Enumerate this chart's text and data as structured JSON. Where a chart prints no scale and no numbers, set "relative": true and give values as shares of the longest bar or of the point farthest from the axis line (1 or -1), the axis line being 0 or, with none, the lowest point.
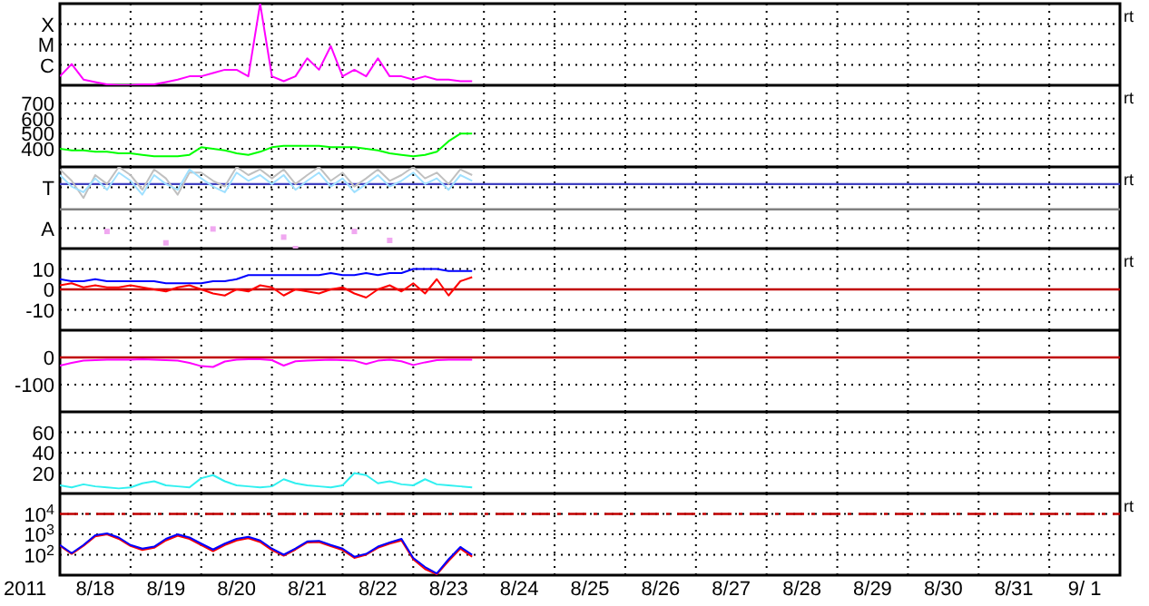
{
  "chart_data": [
    {
      "type": "line",
      "relative": true,
      "grid": true,
      "tick_labels": "y",
      "annotations": [
        "rt",
        "X",
        "M",
        "C"
      ],
      "x": [
        "2011-08-18T00:00",
        "2011-08-18T04:00",
        "2011-08-18T08:00",
        "2011-08-18T12:00",
        "2011-08-18T16:00",
        "2011-08-18T20:00",
        "2011-08-19T00:00",
        "2011-08-19T04:00",
        "2011-08-19T08:00",
        "2011-08-19T12:00",
        "2011-08-19T16:00",
        "2011-08-19T20:00",
        "2011-08-20T00:00",
        "2011-08-20T04:00",
        "2011-08-20T08:00",
        "2011-08-20T12:00",
        "2011-08-20T16:00",
        "2011-08-20T20:00",
        "2011-08-21T00:00",
        "2011-08-21T04:00",
        "2011-08-21T08:00",
        "2011-08-21T12:00",
        "2011-08-21T16:00",
        "2011-08-21T20:00",
        "2011-08-22T00:00",
        "2011-08-22T04:00",
        "2011-08-22T08:00",
        "2011-08-22T12:00",
        "2011-08-22T16:00",
        "2011-08-22T20:00",
        "2011-08-23T00:00",
        "2011-08-23T04:00",
        "2011-08-23T08:00",
        "2011-08-23T12:00",
        "2011-08-23T16:00",
        "2011-08-23T20:00"
      ],
      "xlim": [
        "2011-08-18T00:00",
        "2011-09-02T00:00"
      ],
      "xticks": [
        {
          "value": "2011-08-19T00:00",
          "label": null
        },
        {
          "value": "2011-08-20T00:00",
          "label": null
        },
        {
          "value": "2011-08-21T00:00",
          "label": null
        },
        {
          "value": "2011-08-22T00:00",
          "label": null
        },
        {
          "value": "2011-08-23T00:00",
          "label": null
        },
        {
          "value": "2011-08-24T00:00",
          "label": null
        },
        {
          "value": "2011-08-25T00:00",
          "label": null
        },
        {
          "value": "2011-08-26T00:00",
          "label": null
        },
        {
          "value": "2011-08-27T00:00",
          "label": null
        },
        {
          "value": "2011-08-28T00:00",
          "label": null
        },
        {
          "value": "2011-08-29T00:00",
          "label": null
        },
        {
          "value": "2011-08-30T00:00",
          "label": null
        },
        {
          "value": "2011-08-31T00:00",
          "label": null
        },
        {
          "value": "2011-09-01T00:00",
          "label": null
        }
      ],
      "series": [
        {
          "color": "#ff00ff",
          "values": [
            0.11,
            0.26,
            0.07,
            0.04,
            0.01,
            0,
            0,
            0.01,
            0.01,
            0.04,
            0.07,
            0.11,
            0.11,
            0.15,
            0.19,
            0.19,
            0.11,
            1,
            0.11,
            0.05,
            0.11,
            0.33,
            0.19,
            0.48,
            0.11,
            0.19,
            0.11,
            0.33,
            0.11,
            0.11,
            0.07,
            0.11,
            0.07,
            0.07,
            0.05,
            0.05
          ]
        }
      ]
    },
    {
      "type": "line",
      "grid": true,
      "tick_labels": "y",
      "annotations": [
        "rt"
      ],
      "x": [
        "2011-08-18T00:00",
        "2011-08-18T04:00",
        "2011-08-18T08:00",
        "2011-08-18T12:00",
        "2011-08-18T16:00",
        "2011-08-18T20:00",
        "2011-08-19T00:00",
        "2011-08-19T04:00",
        "2011-08-19T08:00",
        "2011-08-19T12:00",
        "2011-08-19T16:00",
        "2011-08-19T20:00",
        "2011-08-20T00:00",
        "2011-08-20T04:00",
        "2011-08-20T08:00",
        "2011-08-20T12:00",
        "2011-08-20T16:00",
        "2011-08-20T20:00",
        "2011-08-21T00:00",
        "2011-08-21T04:00",
        "2011-08-21T08:00",
        "2011-08-21T12:00",
        "2011-08-21T16:00",
        "2011-08-21T20:00",
        "2011-08-22T00:00",
        "2011-08-22T04:00",
        "2011-08-22T08:00",
        "2011-08-22T12:00",
        "2011-08-22T16:00",
        "2011-08-22T20:00",
        "2011-08-23T00:00",
        "2011-08-23T04:00",
        "2011-08-23T08:00",
        "2011-08-23T12:00",
        "2011-08-23T16:00",
        "2011-08-23T20:00"
      ],
      "xlim": [
        "2011-08-18T00:00",
        "2011-09-02T00:00"
      ],
      "xticks": [
        {
          "value": "2011-08-19T00:00",
          "label": null
        },
        {
          "value": "2011-08-20T00:00",
          "label": null
        },
        {
          "value": "2011-08-21T00:00",
          "label": null
        },
        {
          "value": "2011-08-22T00:00",
          "label": null
        },
        {
          "value": "2011-08-23T00:00",
          "label": null
        },
        {
          "value": "2011-08-24T00:00",
          "label": null
        },
        {
          "value": "2011-08-25T00:00",
          "label": null
        },
        {
          "value": "2011-08-26T00:00",
          "label": null
        },
        {
          "value": "2011-08-27T00:00",
          "label": null
        },
        {
          "value": "2011-08-28T00:00",
          "label": null
        },
        {
          "value": "2011-08-29T00:00",
          "label": null
        },
        {
          "value": "2011-08-30T00:00",
          "label": null
        },
        {
          "value": "2011-08-31T00:00",
          "label": null
        },
        {
          "value": "2011-09-01T00:00",
          "label": null
        }
      ],
      "ylim": [
        280,
        820
      ],
      "yticks": [
        400,
        500,
        600,
        700
      ],
      "series": [
        {
          "color": "#00ff00",
          "values": [
            400,
            390,
            390,
            380,
            380,
            370,
            370,
            360,
            350,
            350,
            350,
            360,
            410,
            400,
            390,
            370,
            360,
            380,
            410,
            420,
            420,
            420,
            420,
            410,
            410,
            410,
            400,
            390,
            370,
            360,
            350,
            360,
            380,
            450,
            500,
            500
          ]
        }
      ]
    },
    {
      "type": "line",
      "relative": true,
      "grid": true,
      "tick_labels": "y",
      "annotations": [
        "rt",
        "T",
        "A"
      ],
      "x": [
        "2011-08-18T00:00",
        "2011-08-18T04:00",
        "2011-08-18T08:00",
        "2011-08-18T12:00",
        "2011-08-18T16:00",
        "2011-08-18T20:00",
        "2011-08-19T00:00",
        "2011-08-19T04:00",
        "2011-08-19T08:00",
        "2011-08-19T12:00",
        "2011-08-19T16:00",
        "2011-08-19T20:00",
        "2011-08-20T00:00",
        "2011-08-20T04:00",
        "2011-08-20T08:00",
        "2011-08-20T12:00",
        "2011-08-20T16:00",
        "2011-08-20T20:00",
        "2011-08-21T00:00",
        "2011-08-21T04:00",
        "2011-08-21T08:00",
        "2011-08-21T12:00",
        "2011-08-21T16:00",
        "2011-08-21T20:00",
        "2011-08-22T00:00",
        "2011-08-22T04:00",
        "2011-08-22T08:00",
        "2011-08-22T12:00",
        "2011-08-22T16:00",
        "2011-08-22T20:00",
        "2011-08-23T00:00",
        "2011-08-23T04:00",
        "2011-08-23T08:00",
        "2011-08-23T12:00",
        "2011-08-23T16:00",
        "2011-08-23T20:00"
      ],
      "xlim": [
        "2011-08-18T00:00",
        "2011-09-02T00:00"
      ],
      "xticks": [
        {
          "value": "2011-08-19T00:00",
          "label": null
        },
        {
          "value": "2011-08-20T00:00",
          "label": null
        },
        {
          "value": "2011-08-21T00:00",
          "label": null
        },
        {
          "value": "2011-08-22T00:00",
          "label": null
        },
        {
          "value": "2011-08-23T00:00",
          "label": null
        },
        {
          "value": "2011-08-24T00:00",
          "label": null
        },
        {
          "value": "2011-08-25T00:00",
          "label": null
        },
        {
          "value": "2011-08-26T00:00",
          "label": null
        },
        {
          "value": "2011-08-27T00:00",
          "label": null
        },
        {
          "value": "2011-08-28T00:00",
          "label": null
        },
        {
          "value": "2011-08-29T00:00",
          "label": null
        },
        {
          "value": "2011-08-30T00:00",
          "label": null
        },
        {
          "value": "2011-08-31T00:00",
          "label": null
        },
        {
          "value": "2011-09-01T00:00",
          "label": null
        }
      ],
      "ref_lines": [
        {
          "axis": "y",
          "value": 0.79,
          "color": "#4040c0"
        },
        {
          "axis": "y",
          "value": 0.48,
          "color": "#808080"
        }
      ],
      "series": [
        {
          "color": "#c0c0c0",
          "values": [
            0.97,
            0.83,
            0.62,
            0.9,
            0.79,
            1,
            0.9,
            0.72,
            0.97,
            0.86,
            0.66,
            0.93,
            0.93,
            0.83,
            0.76,
            1,
            0.9,
            0.97,
            0.86,
            0.97,
            0.79,
            0.9,
            1,
            0.83,
            0.93,
            0.76,
            0.86,
            0.97,
            0.83,
            0.9,
            1,
            0.86,
            0.93,
            0.79,
            0.97,
            0.9
          ]
        },
        {
          "color": "#a0e0ff",
          "values": [
            0.9,
            0.76,
            0.69,
            0.86,
            0.72,
            0.93,
            0.83,
            0.66,
            0.9,
            0.79,
            0.72,
            0.97,
            0.86,
            0.76,
            0.69,
            0.93,
            0.83,
            0.9,
            0.79,
            0.9,
            0.72,
            0.83,
            0.93,
            0.76,
            0.86,
            0.69,
            0.79,
            0.9,
            0.76,
            0.83,
            0.93,
            0.79,
            0.86,
            0.72,
            0.9,
            0.83
          ]
        },
        {
          "type": "scatter",
          "color": "#f0a8f0",
          "values": [
            null,
            null,
            null,
            null,
            0.21,
            null,
            null,
            null,
            null,
            0.07,
            null,
            null,
            null,
            0.24,
            null,
            null,
            null,
            null,
            null,
            0.14,
            0,
            null,
            null,
            null,
            null,
            0.21,
            null,
            null,
            0.1,
            null,
            null,
            null,
            null,
            null,
            null,
            null
          ]
        }
      ]
    },
    {
      "type": "line",
      "grid": true,
      "tick_labels": "y",
      "annotations": [
        "rt"
      ],
      "x": [
        "2011-08-18T00:00",
        "2011-08-18T04:00",
        "2011-08-18T08:00",
        "2011-08-18T12:00",
        "2011-08-18T16:00",
        "2011-08-18T20:00",
        "2011-08-19T00:00",
        "2011-08-19T04:00",
        "2011-08-19T08:00",
        "2011-08-19T12:00",
        "2011-08-19T16:00",
        "2011-08-19T20:00",
        "2011-08-20T00:00",
        "2011-08-20T04:00",
        "2011-08-20T08:00",
        "2011-08-20T12:00",
        "2011-08-20T16:00",
        "2011-08-20T20:00",
        "2011-08-21T00:00",
        "2011-08-21T04:00",
        "2011-08-21T08:00",
        "2011-08-21T12:00",
        "2011-08-21T16:00",
        "2011-08-21T20:00",
        "2011-08-22T00:00",
        "2011-08-22T04:00",
        "2011-08-22T08:00",
        "2011-08-22T12:00",
        "2011-08-22T16:00",
        "2011-08-22T20:00",
        "2011-08-23T00:00",
        "2011-08-23T04:00",
        "2011-08-23T08:00",
        "2011-08-23T12:00",
        "2011-08-23T16:00",
        "2011-08-23T20:00"
      ],
      "xlim": [
        "2011-08-18T00:00",
        "2011-09-02T00:00"
      ],
      "xticks": [
        {
          "value": "2011-08-19T00:00",
          "label": null
        },
        {
          "value": "2011-08-20T00:00",
          "label": null
        },
        {
          "value": "2011-08-21T00:00",
          "label": null
        },
        {
          "value": "2011-08-22T00:00",
          "label": null
        },
        {
          "value": "2011-08-23T00:00",
          "label": null
        },
        {
          "value": "2011-08-24T00:00",
          "label": null
        },
        {
          "value": "2011-08-25T00:00",
          "label": null
        },
        {
          "value": "2011-08-26T00:00",
          "label": null
        },
        {
          "value": "2011-08-27T00:00",
          "label": null
        },
        {
          "value": "2011-08-28T00:00",
          "label": null
        },
        {
          "value": "2011-08-29T00:00",
          "label": null
        },
        {
          "value": "2011-08-30T00:00",
          "label": null
        },
        {
          "value": "2011-08-31T00:00",
          "label": null
        },
        {
          "value": "2011-09-01T00:00",
          "label": null
        }
      ],
      "ylim": [
        -20,
        20
      ],
      "yticks": [
        -10,
        0,
        10
      ],
      "ref_lines": [
        {
          "axis": "y",
          "value": 0,
          "color": "#c00000"
        }
      ],
      "series": [
        {
          "color": "#0000ff",
          "values": [
            5,
            4,
            4,
            5,
            4,
            4,
            4,
            4,
            4,
            3,
            3,
            3,
            3,
            4,
            4,
            5,
            7,
            7,
            7,
            7,
            7,
            7,
            7,
            8,
            7,
            7,
            8,
            7,
            8,
            8,
            10,
            10,
            10,
            9,
            9,
            9
          ]
        },
        {
          "color": "#ff0000",
          "values": [
            2,
            3,
            1,
            2,
            1,
            1,
            2,
            1,
            0,
            -1,
            1,
            2,
            0,
            -2,
            -3,
            0,
            -1,
            2,
            1,
            -3,
            0,
            -1,
            -2,
            0,
            1,
            -2,
            -4,
            0,
            2,
            -1,
            3,
            -2,
            5,
            -3,
            4,
            6
          ]
        }
      ]
    },
    {
      "type": "line",
      "grid": true,
      "tick_labels": "y",
      "x": [
        "2011-08-18T00:00",
        "2011-08-18T04:00",
        "2011-08-18T08:00",
        "2011-08-18T12:00",
        "2011-08-18T16:00",
        "2011-08-18T20:00",
        "2011-08-19T00:00",
        "2011-08-19T04:00",
        "2011-08-19T08:00",
        "2011-08-19T12:00",
        "2011-08-19T16:00",
        "2011-08-19T20:00",
        "2011-08-20T00:00",
        "2011-08-20T04:00",
        "2011-08-20T08:00",
        "2011-08-20T12:00",
        "2011-08-20T16:00",
        "2011-08-20T20:00",
        "2011-08-21T00:00",
        "2011-08-21T04:00",
        "2011-08-21T08:00",
        "2011-08-21T12:00",
        "2011-08-21T16:00",
        "2011-08-21T20:00",
        "2011-08-22T00:00",
        "2011-08-22T04:00",
        "2011-08-22T08:00",
        "2011-08-22T12:00",
        "2011-08-22T16:00",
        "2011-08-22T20:00",
        "2011-08-23T00:00",
        "2011-08-23T04:00",
        "2011-08-23T08:00",
        "2011-08-23T12:00",
        "2011-08-23T16:00",
        "2011-08-23T20:00"
      ],
      "xlim": [
        "2011-08-18T00:00",
        "2011-09-02T00:00"
      ],
      "xticks": [
        {
          "value": "2011-08-19T00:00",
          "label": null
        },
        {
          "value": "2011-08-20T00:00",
          "label": null
        },
        {
          "value": "2011-08-21T00:00",
          "label": null
        },
        {
          "value": "2011-08-22T00:00",
          "label": null
        },
        {
          "value": "2011-08-23T00:00",
          "label": null
        },
        {
          "value": "2011-08-24T00:00",
          "label": null
        },
        {
          "value": "2011-08-25T00:00",
          "label": null
        },
        {
          "value": "2011-08-26T00:00",
          "label": null
        },
        {
          "value": "2011-08-27T00:00",
          "label": null
        },
        {
          "value": "2011-08-28T00:00",
          "label": null
        },
        {
          "value": "2011-08-29T00:00",
          "label": null
        },
        {
          "value": "2011-08-30T00:00",
          "label": null
        },
        {
          "value": "2011-08-31T00:00",
          "label": null
        },
        {
          "value": "2011-09-01T00:00",
          "label": null
        }
      ],
      "ylim": [
        -200,
        100
      ],
      "yticks": [
        -100,
        0
      ],
      "ref_lines": [
        {
          "axis": "y",
          "value": 0,
          "color": "#c00000"
        }
      ],
      "series": [
        {
          "color": "#ff00ff",
          "values": [
            -30,
            -20,
            -12,
            -10,
            -8,
            -8,
            -8,
            -7,
            -8,
            -10,
            -12,
            -20,
            -32,
            -35,
            -15,
            -8,
            -7,
            -7,
            -10,
            -30,
            -14,
            -12,
            -10,
            -8,
            -10,
            -12,
            -24,
            -12,
            -8,
            -14,
            -28,
            -18,
            -10,
            -8,
            -8,
            -8
          ]
        }
      ]
    },
    {
      "type": "line",
      "grid": true,
      "tick_labels": "y",
      "x": [
        "2011-08-18T00:00",
        "2011-08-18T04:00",
        "2011-08-18T08:00",
        "2011-08-18T12:00",
        "2011-08-18T16:00",
        "2011-08-18T20:00",
        "2011-08-19T00:00",
        "2011-08-19T04:00",
        "2011-08-19T08:00",
        "2011-08-19T12:00",
        "2011-08-19T16:00",
        "2011-08-19T20:00",
        "2011-08-20T00:00",
        "2011-08-20T04:00",
        "2011-08-20T08:00",
        "2011-08-20T12:00",
        "2011-08-20T16:00",
        "2011-08-20T20:00",
        "2011-08-21T00:00",
        "2011-08-21T04:00",
        "2011-08-21T08:00",
        "2011-08-21T12:00",
        "2011-08-21T16:00",
        "2011-08-21T20:00",
        "2011-08-22T00:00",
        "2011-08-22T04:00",
        "2011-08-22T08:00",
        "2011-08-22T12:00",
        "2011-08-22T16:00",
        "2011-08-22T20:00",
        "2011-08-23T00:00",
        "2011-08-23T04:00",
        "2011-08-23T08:00",
        "2011-08-23T12:00",
        "2011-08-23T16:00",
        "2011-08-23T20:00"
      ],
      "xlim": [
        "2011-08-18T00:00",
        "2011-09-02T00:00"
      ],
      "xticks": [
        {
          "value": "2011-08-19T00:00",
          "label": null
        },
        {
          "value": "2011-08-20T00:00",
          "label": null
        },
        {
          "value": "2011-08-21T00:00",
          "label": null
        },
        {
          "value": "2011-08-22T00:00",
          "label": null
        },
        {
          "value": "2011-08-23T00:00",
          "label": null
        },
        {
          "value": "2011-08-24T00:00",
          "label": null
        },
        {
          "value": "2011-08-25T00:00",
          "label": null
        },
        {
          "value": "2011-08-26T00:00",
          "label": null
        },
        {
          "value": "2011-08-27T00:00",
          "label": null
        },
        {
          "value": "2011-08-28T00:00",
          "label": null
        },
        {
          "value": "2011-08-29T00:00",
          "label": null
        },
        {
          "value": "2011-08-30T00:00",
          "label": null
        },
        {
          "value": "2011-08-31T00:00",
          "label": null
        },
        {
          "value": "2011-09-01T00:00",
          "label": null
        }
      ],
      "ylim": [
        0,
        80
      ],
      "yticks": [
        20,
        40,
        60
      ],
      "series": [
        {
          "color": "#30f0f0",
          "values": [
            8,
            6,
            9,
            7,
            6,
            5,
            6,
            10,
            12,
            8,
            7,
            6,
            15,
            18,
            12,
            8,
            7,
            6,
            7,
            14,
            10,
            8,
            7,
            6,
            8,
            20,
            18,
            10,
            12,
            9,
            8,
            14,
            9,
            8,
            7,
            6
          ]
        }
      ]
    },
    {
      "type": "line",
      "log": "y",
      "grid": true,
      "annotations": [
        "rt"
      ],
      "xlabel": "2011",
      "x": [
        "2011-08-18T00:00",
        "2011-08-18T04:00",
        "2011-08-18T08:00",
        "2011-08-18T12:00",
        "2011-08-18T16:00",
        "2011-08-18T20:00",
        "2011-08-19T00:00",
        "2011-08-19T04:00",
        "2011-08-19T08:00",
        "2011-08-19T12:00",
        "2011-08-19T16:00",
        "2011-08-19T20:00",
        "2011-08-20T00:00",
        "2011-08-20T04:00",
        "2011-08-20T08:00",
        "2011-08-20T12:00",
        "2011-08-20T16:00",
        "2011-08-20T20:00",
        "2011-08-21T00:00",
        "2011-08-21T04:00",
        "2011-08-21T08:00",
        "2011-08-21T12:00",
        "2011-08-21T16:00",
        "2011-08-21T20:00",
        "2011-08-22T00:00",
        "2011-08-22T04:00",
        "2011-08-22T08:00",
        "2011-08-22T12:00",
        "2011-08-22T16:00",
        "2011-08-22T20:00",
        "2011-08-23T00:00",
        "2011-08-23T04:00",
        "2011-08-23T08:00",
        "2011-08-23T12:00",
        "2011-08-23T16:00",
        "2011-08-23T20:00"
      ],
      "xlim": [
        "2011-08-18T00:00",
        "2011-09-02T00:00"
      ],
      "xticks": [
        {
          "value": "2011-08-18T12:00",
          "label": "8/18"
        },
        {
          "value": "2011-08-19T00:00",
          "label": null
        },
        {
          "value": "2011-08-19T12:00",
          "label": "8/19"
        },
        {
          "value": "2011-08-20T00:00",
          "label": null
        },
        {
          "value": "2011-08-20T12:00",
          "label": "8/20"
        },
        {
          "value": "2011-08-21T00:00",
          "label": null
        },
        {
          "value": "2011-08-21T12:00",
          "label": "8/21"
        },
        {
          "value": "2011-08-22T00:00",
          "label": null
        },
        {
          "value": "2011-08-22T12:00",
          "label": "8/22"
        },
        {
          "value": "2011-08-23T00:00",
          "label": null
        },
        {
          "value": "2011-08-23T12:00",
          "label": "8/23"
        },
        {
          "value": "2011-08-24T00:00",
          "label": null
        },
        {
          "value": "2011-08-24T12:00",
          "label": "8/24"
        },
        {
          "value": "2011-08-25T00:00",
          "label": null
        },
        {
          "value": "2011-08-25T12:00",
          "label": "8/25"
        },
        {
          "value": "2011-08-26T00:00",
          "label": null
        },
        {
          "value": "2011-08-26T12:00",
          "label": "8/26"
        },
        {
          "value": "2011-08-27T00:00",
          "label": null
        },
        {
          "value": "2011-08-27T12:00",
          "label": "8/27"
        },
        {
          "value": "2011-08-28T00:00",
          "label": null
        },
        {
          "value": "2011-08-28T12:00",
          "label": "8/28"
        },
        {
          "value": "2011-08-29T00:00",
          "label": null
        },
        {
          "value": "2011-08-29T12:00",
          "label": "8/29"
        },
        {
          "value": "2011-08-30T00:00",
          "label": null
        },
        {
          "value": "2011-08-30T12:00",
          "label": "8/30"
        },
        {
          "value": "2011-08-31T00:00",
          "label": null
        },
        {
          "value": "2011-08-31T12:00",
          "label": "8/31"
        },
        {
          "value": "2011-09-01T00:00",
          "label": null
        },
        {
          "value": "2011-09-01T12:00",
          "label": "9/ 1"
        }
      ],
      "ylim": [
        10,
        100000
      ],
      "yticks": [
        {
          "value": 100,
          "label": "10$^{2}$"
        },
        {
          "value": 1000,
          "label": "10$^{3}$"
        },
        {
          "value": 10000,
          "label": "10$^{4}$"
        }
      ],
      "ref_lines": [
        {
          "axis": "y",
          "value": 10000,
          "color": "#c00000",
          "line_style": "dashed"
        }
      ],
      "series": [
        {
          "color": "#ff0000",
          "values": [
            280,
            110,
            270,
            800,
            1000,
            600,
            270,
            170,
            220,
            500,
            850,
            600,
            300,
            150,
            300,
            500,
            650,
            420,
            170,
            90,
            180,
            400,
            420,
            260,
            170,
            70,
            100,
            220,
            350,
            500,
            60,
            20,
            11,
            50,
            200,
            80
          ]
        },
        {
          "color": "#0000ff",
          "values": [
            300,
            120,
            300,
            900,
            1100,
            700,
            300,
            200,
            250,
            600,
            1000,
            700,
            350,
            180,
            350,
            600,
            750,
            500,
            200,
            100,
            200,
            450,
            480,
            300,
            200,
            80,
            110,
            250,
            400,
            600,
            70,
            25,
            12,
            60,
            240,
            100
          ]
        }
      ]
    }
  ]
}
